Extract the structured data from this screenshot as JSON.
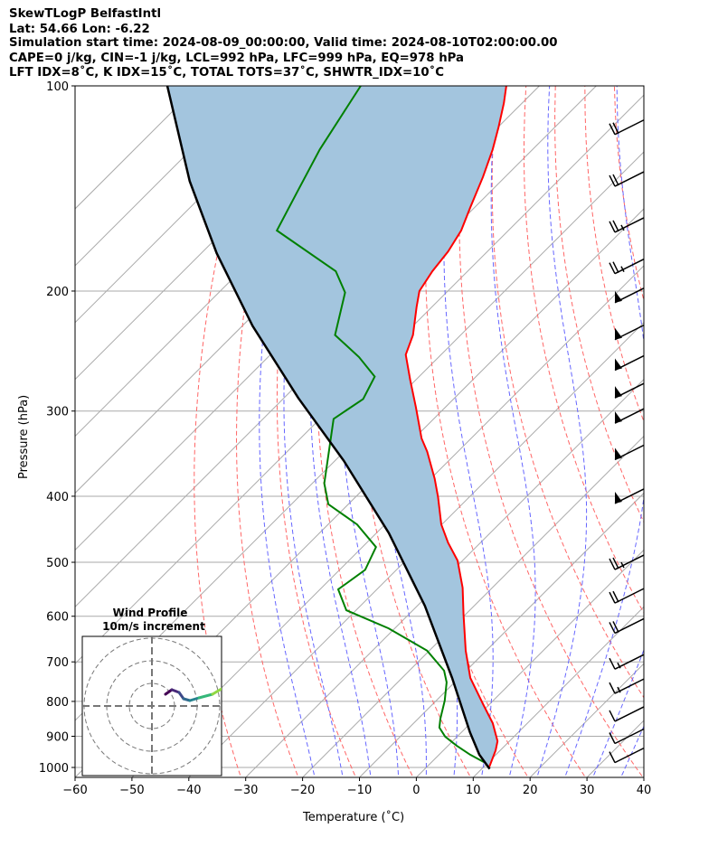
{
  "header": {
    "line1": "SkewTLogP BelfastIntl",
    "line2": "Lat: 54.66   Lon: -6.22",
    "line3": "Simulation start time: 2024-08-09_00:00:00, Valid time: 2024-08-10T02:00:00.00",
    "line4": "CAPE=0 j/kg, CIN=-1 j/kg, LCL=992 hPa, LFC=999 hPa, EQ=978 hPa",
    "line5": "LFT IDX=8˚C, K IDX=15˚C, TOTAL TOTS=37˚C, SHWTR_IDX=10˚C"
  },
  "chart_data": {
    "type": "line",
    "subtype": "skew-t log-p",
    "xlabel": "Temperature (˚C)",
    "ylabel": "Pressure (hPa)",
    "xlim": [
      -60,
      40
    ],
    "ylim": [
      1035,
      100
    ],
    "xticks": [
      "−60",
      "−50",
      "−40",
      "−30",
      "−20",
      "−10",
      "0",
      "10",
      "20",
      "30",
      "40"
    ],
    "xtick_values": [
      -60,
      -50,
      -40,
      -30,
      -20,
      -10,
      0,
      10,
      20,
      30,
      40
    ],
    "yticks": [
      "100",
      "200",
      "300",
      "400",
      "500",
      "600",
      "700",
      "800",
      "900",
      "1000"
    ],
    "ytick_values": [
      100,
      200,
      300,
      400,
      500,
      600,
      700,
      800,
      900,
      1000
    ],
    "colors": {
      "temperature": "#ff0000",
      "dewpoint": "#008000",
      "parcel": "#000000",
      "cape_fill": "#a3c5de",
      "isotherm": "#aaaaaa",
      "dry_adiabat": "#ff6666",
      "moist_adiabat": "#6666ff"
    },
    "temperature": {
      "p": [
        1002,
        944,
        915,
        861,
        810,
        739,
        674,
        597,
        545,
        497,
        468,
        440,
        401,
        377,
        344,
        329,
        296,
        270,
        248,
        232,
        211,
        200,
        187,
        175,
        163,
        151,
        136,
        124,
        115,
        106,
        100
      ],
      "t": [
        11.1,
        9.2,
        7.9,
        3.9,
        -0.9,
        -8,
        -13.6,
        -20.3,
        -25.2,
        -30.9,
        -35.7,
        -40.1,
        -45.5,
        -49.3,
        -55.4,
        -58.7,
        -65.2,
        -71,
        -76.2,
        -78.4,
        -82.7,
        -85,
        -86.2,
        -86.9,
        -88.3,
        -90.7,
        -93.9,
        -97,
        -99.9,
        -103.2,
        -105.8
      ]
    },
    "dewpoint": {
      "p": [
        982,
        958,
        929,
        901,
        874,
        848,
        798,
        750,
        721,
        674,
        625,
        588,
        548,
        513,
        475,
        440,
        411,
        383,
        350,
        308,
        288,
        267,
        250,
        232,
        201,
        187,
        163,
        142,
        124,
        100
      ],
      "t": [
        9.2,
        5.5,
        1.5,
        -2.1,
        -4.7,
        -6.1,
        -8.5,
        -11.4,
        -13.9,
        -20.4,
        -31.1,
        -41.7,
        -46.8,
        -45.5,
        -47.6,
        -54.9,
        -63.5,
        -67.9,
        -71.9,
        -77.6,
        -75.9,
        -77.8,
        -84,
        -92.1,
        -97.8,
        -103.2,
        -120.7,
        -124.1,
        -127.4,
        -131.4
      ]
    },
    "parcel": {
      "p": [
        1005,
        958,
        888,
        739,
        579,
        453,
        355,
        287,
        225,
        176,
        138,
        100
      ],
      "t": [
        11.4,
        7.1,
        1.5,
        -11.2,
        -28.7,
        -47.8,
        -68.4,
        -87.5,
        -108.2,
        -127.3,
        -144.7,
        -165.4
      ]
    },
    "wind_barb_pressures": [
      115,
      137,
      160,
      184,
      203,
      230,
      255,
      280,
      305,
      345,
      400,
      500,
      560,
      620,
      700,
      760,
      835,
      900,
      960
    ],
    "wind_barb_speeds_kt": [
      20,
      20,
      25,
      25,
      50,
      50,
      50,
      50,
      50,
      50,
      50,
      25,
      20,
      20,
      15,
      15,
      10,
      10,
      10
    ],
    "hodograph": {
      "title": "Wind Profile",
      "subtitle": "10m/s increment",
      "rings_ms": [
        10,
        20,
        30
      ],
      "u": [
        6,
        8.8,
        12,
        14,
        16.8,
        20.8,
        26.8,
        30.8
      ],
      "v": [
        5.2,
        7.2,
        6,
        3.2,
        2.4,
        3.6,
        5.2,
        7.6
      ]
    }
  }
}
